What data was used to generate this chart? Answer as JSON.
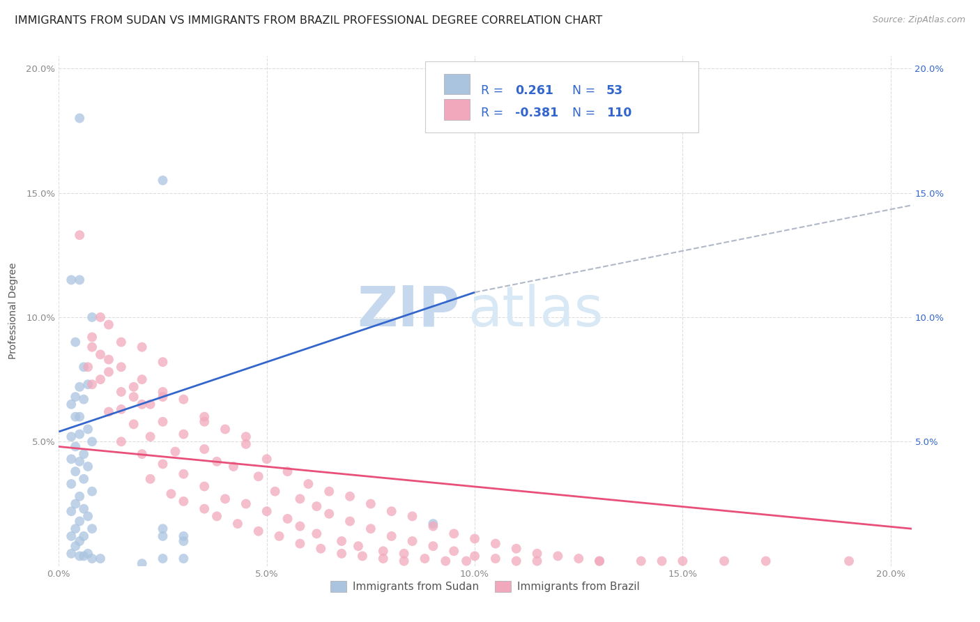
{
  "title": "IMMIGRANTS FROM SUDAN VS IMMIGRANTS FROM BRAZIL PROFESSIONAL DEGREE CORRELATION CHART",
  "source": "Source: ZipAtlas.com",
  "ylabel": "Professional Degree",
  "xlim": [
    0.0,
    0.205
  ],
  "ylim": [
    0.0,
    0.205
  ],
  "x_ticks": [
    0.0,
    0.05,
    0.1,
    0.15,
    0.2
  ],
  "y_ticks": [
    0.0,
    0.05,
    0.1,
    0.15,
    0.2
  ],
  "legend_r1_label": "R =",
  "legend_r1_val": "0.261",
  "legend_n1_label": "N =",
  "legend_n1_val": "53",
  "legend_r2_label": "R =",
  "legend_r2_val": "-0.381",
  "legend_n2_label": "N =",
  "legend_n2_val": "110",
  "sudan_color": "#aac4e0",
  "brazil_color": "#f2a8bc",
  "sudan_line_color": "#3366cc",
  "brazil_line_color": "#e8507a",
  "dash_line_color": "#b0b8c8",
  "legend_text_color": "#3366cc",
  "legend_val_color": "#3366cc",
  "watermark_zip": "ZIP",
  "watermark_atlas": "atlas",
  "watermark_color": "#d0dff0",
  "background_color": "#ffffff",
  "grid_color": "#dddddd",
  "title_fontsize": 11.5,
  "axis_tick_color": "#888888",
  "right_tick_color": "#3366cc",
  "ylabel_color": "#555555",
  "bottom_legend_color": "#555555",
  "sudan_points_x": [
    0.005,
    0.025,
    0.005,
    0.008,
    0.003,
    0.004,
    0.006,
    0.007,
    0.005,
    0.004,
    0.006,
    0.003,
    0.005,
    0.004,
    0.007,
    0.005,
    0.003,
    0.008,
    0.004,
    0.006,
    0.003,
    0.005,
    0.007,
    0.004,
    0.006,
    0.003,
    0.008,
    0.005,
    0.004,
    0.006,
    0.003,
    0.007,
    0.005,
    0.004,
    0.008,
    0.003,
    0.006,
    0.005,
    0.004,
    0.007,
    0.003,
    0.005,
    0.006,
    0.008,
    0.025,
    0.025,
    0.03,
    0.03,
    0.09,
    0.01,
    0.025,
    0.03,
    0.02
  ],
  "sudan_points_y": [
    0.18,
    0.155,
    0.115,
    0.1,
    0.115,
    0.09,
    0.08,
    0.073,
    0.072,
    0.068,
    0.067,
    0.065,
    0.06,
    0.06,
    0.055,
    0.053,
    0.052,
    0.05,
    0.048,
    0.045,
    0.043,
    0.042,
    0.04,
    0.038,
    0.035,
    0.033,
    0.03,
    0.028,
    0.025,
    0.023,
    0.022,
    0.02,
    0.018,
    0.015,
    0.015,
    0.012,
    0.012,
    0.01,
    0.008,
    0.005,
    0.005,
    0.004,
    0.004,
    0.003,
    0.015,
    0.012,
    0.012,
    0.01,
    0.017,
    0.003,
    0.003,
    0.003,
    0.001
  ],
  "brazil_points_x": [
    0.005,
    0.01,
    0.012,
    0.008,
    0.015,
    0.02,
    0.01,
    0.025,
    0.015,
    0.012,
    0.02,
    0.008,
    0.025,
    0.018,
    0.03,
    0.022,
    0.015,
    0.012,
    0.035,
    0.025,
    0.018,
    0.04,
    0.03,
    0.022,
    0.015,
    0.045,
    0.035,
    0.028,
    0.02,
    0.05,
    0.038,
    0.025,
    0.042,
    0.055,
    0.03,
    0.048,
    0.022,
    0.06,
    0.035,
    0.065,
    0.052,
    0.027,
    0.07,
    0.04,
    0.058,
    0.03,
    0.075,
    0.045,
    0.062,
    0.035,
    0.08,
    0.05,
    0.065,
    0.038,
    0.085,
    0.055,
    0.07,
    0.043,
    0.09,
    0.058,
    0.075,
    0.048,
    0.095,
    0.062,
    0.08,
    0.053,
    0.1,
    0.068,
    0.085,
    0.058,
    0.105,
    0.072,
    0.09,
    0.063,
    0.11,
    0.078,
    0.095,
    0.068,
    0.115,
    0.083,
    0.1,
    0.073,
    0.12,
    0.088,
    0.105,
    0.078,
    0.125,
    0.093,
    0.11,
    0.083,
    0.13,
    0.098,
    0.14,
    0.115,
    0.15,
    0.13,
    0.16,
    0.145,
    0.17,
    0.19,
    0.015,
    0.01,
    0.007,
    0.025,
    0.018,
    0.008,
    0.012,
    0.035,
    0.02,
    0.045
  ],
  "brazil_points_y": [
    0.133,
    0.1,
    0.097,
    0.092,
    0.09,
    0.088,
    0.085,
    0.082,
    0.08,
    0.078,
    0.075,
    0.073,
    0.07,
    0.068,
    0.067,
    0.065,
    0.063,
    0.062,
    0.06,
    0.058,
    0.057,
    0.055,
    0.053,
    0.052,
    0.05,
    0.049,
    0.047,
    0.046,
    0.045,
    0.043,
    0.042,
    0.041,
    0.04,
    0.038,
    0.037,
    0.036,
    0.035,
    0.033,
    0.032,
    0.03,
    0.03,
    0.029,
    0.028,
    0.027,
    0.027,
    0.026,
    0.025,
    0.025,
    0.024,
    0.023,
    0.022,
    0.022,
    0.021,
    0.02,
    0.02,
    0.019,
    0.018,
    0.017,
    0.016,
    0.016,
    0.015,
    0.014,
    0.013,
    0.013,
    0.012,
    0.012,
    0.011,
    0.01,
    0.01,
    0.009,
    0.009,
    0.008,
    0.008,
    0.007,
    0.007,
    0.006,
    0.006,
    0.005,
    0.005,
    0.005,
    0.004,
    0.004,
    0.004,
    0.003,
    0.003,
    0.003,
    0.003,
    0.002,
    0.002,
    0.002,
    0.002,
    0.002,
    0.002,
    0.002,
    0.002,
    0.002,
    0.002,
    0.002,
    0.002,
    0.002,
    0.07,
    0.075,
    0.08,
    0.068,
    0.072,
    0.088,
    0.083,
    0.058,
    0.065,
    0.052
  ],
  "sudan_line_x": [
    0.0,
    0.1
  ],
  "sudan_line_y": [
    0.054,
    0.11
  ],
  "dash_line_x": [
    0.1,
    0.205
  ],
  "dash_line_y": [
    0.11,
    0.145
  ],
  "brazil_line_x": [
    0.0,
    0.205
  ],
  "brazil_line_y": [
    0.048,
    0.015
  ]
}
